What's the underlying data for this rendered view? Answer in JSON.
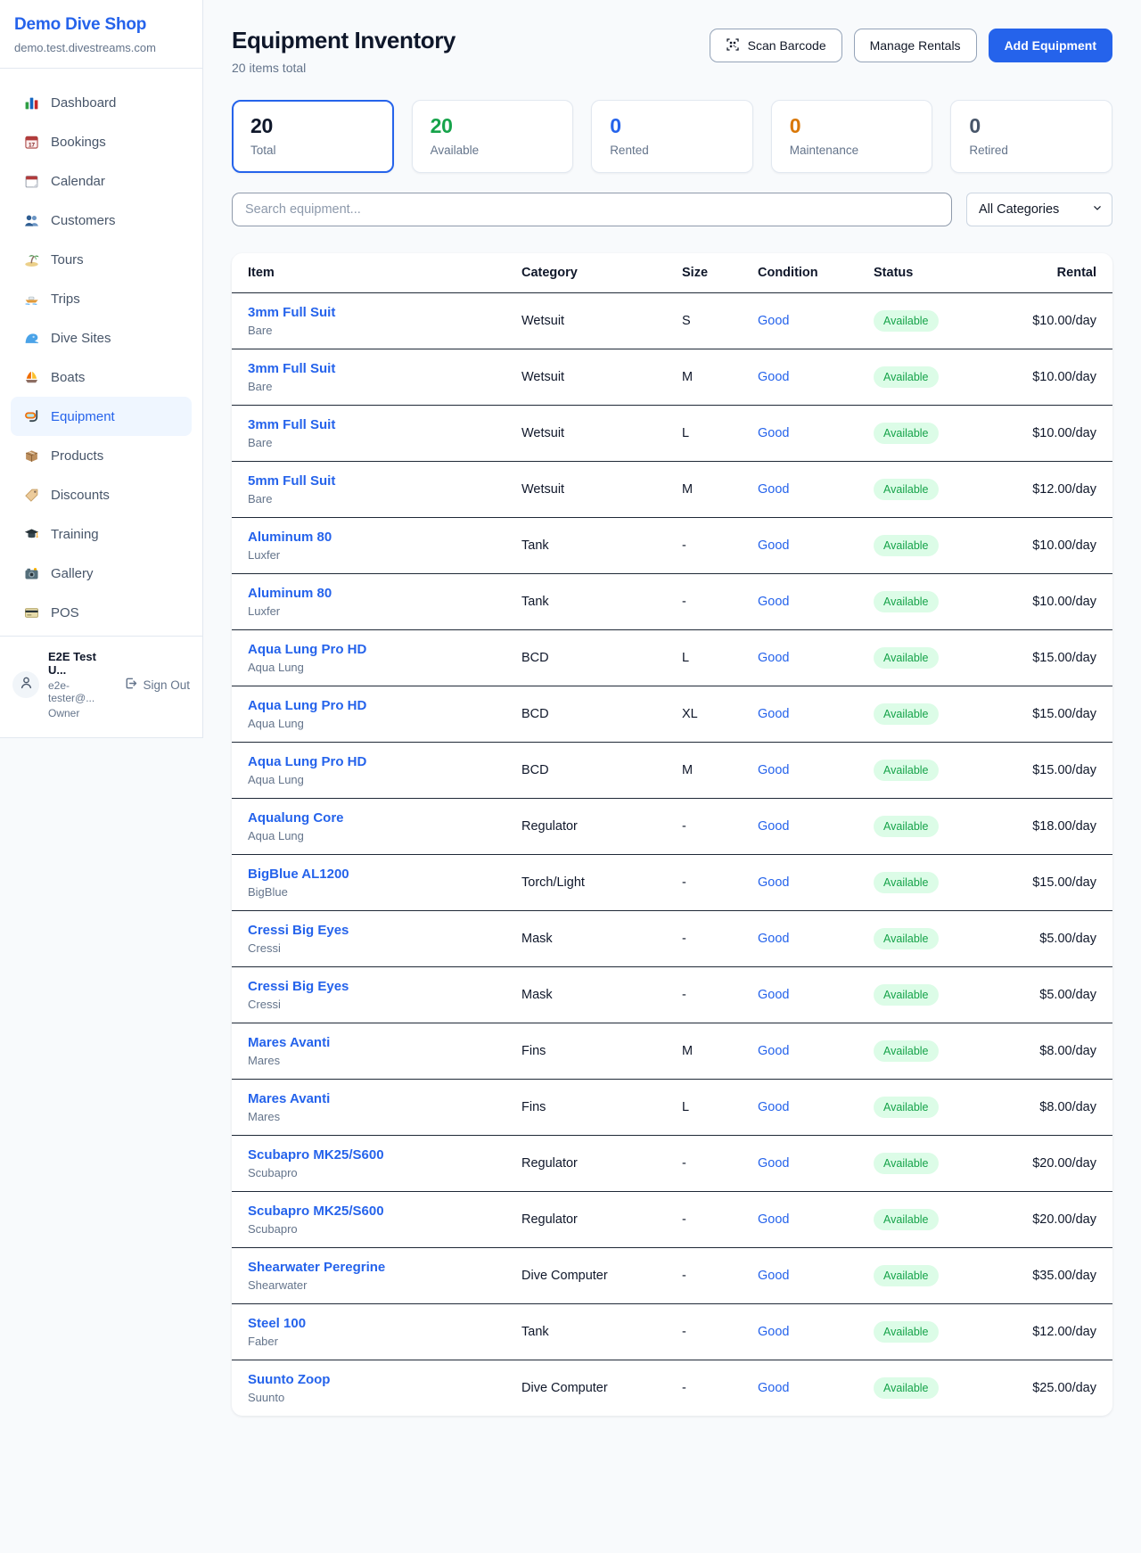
{
  "sidebar": {
    "shop_name": "Demo Dive Shop",
    "domain": "demo.test.divestreams.com",
    "nav": [
      {
        "label": "Dashboard",
        "icon": "dashboard-icon",
        "active": false
      },
      {
        "label": "Bookings",
        "icon": "bookings-icon",
        "active": false
      },
      {
        "label": "Calendar",
        "icon": "calendar-icon",
        "active": false
      },
      {
        "label": "Customers",
        "icon": "customers-icon",
        "active": false
      },
      {
        "label": "Tours",
        "icon": "tours-icon",
        "active": false
      },
      {
        "label": "Trips",
        "icon": "trips-icon",
        "active": false
      },
      {
        "label": "Dive Sites",
        "icon": "dive-sites-icon",
        "active": false
      },
      {
        "label": "Boats",
        "icon": "boats-icon",
        "active": false
      },
      {
        "label": "Equipment",
        "icon": "equipment-icon",
        "active": true
      },
      {
        "label": "Products",
        "icon": "products-icon",
        "active": false
      },
      {
        "label": "Discounts",
        "icon": "discounts-icon",
        "active": false
      },
      {
        "label": "Training",
        "icon": "training-icon",
        "active": false
      },
      {
        "label": "Gallery",
        "icon": "gallery-icon",
        "active": false
      },
      {
        "label": "POS",
        "icon": "pos-icon",
        "active": false
      }
    ],
    "user": {
      "name": "E2E Test U...",
      "email": "e2e-tester@...",
      "role": "Owner",
      "sign_out_label": "Sign Out"
    }
  },
  "header": {
    "title": "Equipment Inventory",
    "subtitle": "20 items total",
    "buttons": {
      "scan": "Scan Barcode",
      "manage": "Manage Rentals",
      "add": "Add Equipment"
    }
  },
  "stats": [
    {
      "value": "20",
      "label": "Total",
      "color": "#0f172a",
      "selected": true
    },
    {
      "value": "20",
      "label": "Available",
      "color": "#16a34a",
      "selected": false
    },
    {
      "value": "0",
      "label": "Rented",
      "color": "#2563eb",
      "selected": false
    },
    {
      "value": "0",
      "label": "Maintenance",
      "color": "#d97706",
      "selected": false
    },
    {
      "value": "0",
      "label": "Retired",
      "color": "#475569",
      "selected": false
    }
  ],
  "filters": {
    "search_placeholder": "Search equipment...",
    "category_selected": "All Categories"
  },
  "table": {
    "columns": [
      "Item",
      "Category",
      "Size",
      "Condition",
      "Status",
      "Rental"
    ],
    "rows": [
      {
        "item": "3mm Full Suit",
        "brand": "Bare",
        "category": "Wetsuit",
        "size": "S",
        "condition": "Good",
        "status": "Available",
        "rental": "$10.00/day"
      },
      {
        "item": "3mm Full Suit",
        "brand": "Bare",
        "category": "Wetsuit",
        "size": "M",
        "condition": "Good",
        "status": "Available",
        "rental": "$10.00/day"
      },
      {
        "item": "3mm Full Suit",
        "brand": "Bare",
        "category": "Wetsuit",
        "size": "L",
        "condition": "Good",
        "status": "Available",
        "rental": "$10.00/day"
      },
      {
        "item": "5mm Full Suit",
        "brand": "Bare",
        "category": "Wetsuit",
        "size": "M",
        "condition": "Good",
        "status": "Available",
        "rental": "$12.00/day"
      },
      {
        "item": "Aluminum 80",
        "brand": "Luxfer",
        "category": "Tank",
        "size": "-",
        "condition": "Good",
        "status": "Available",
        "rental": "$10.00/day"
      },
      {
        "item": "Aluminum 80",
        "brand": "Luxfer",
        "category": "Tank",
        "size": "-",
        "condition": "Good",
        "status": "Available",
        "rental": "$10.00/day"
      },
      {
        "item": "Aqua Lung Pro HD",
        "brand": "Aqua Lung",
        "category": "BCD",
        "size": "L",
        "condition": "Good",
        "status": "Available",
        "rental": "$15.00/day"
      },
      {
        "item": "Aqua Lung Pro HD",
        "brand": "Aqua Lung",
        "category": "BCD",
        "size": "XL",
        "condition": "Good",
        "status": "Available",
        "rental": "$15.00/day"
      },
      {
        "item": "Aqua Lung Pro HD",
        "brand": "Aqua Lung",
        "category": "BCD",
        "size": "M",
        "condition": "Good",
        "status": "Available",
        "rental": "$15.00/day"
      },
      {
        "item": "Aqualung Core",
        "brand": "Aqua Lung",
        "category": "Regulator",
        "size": "-",
        "condition": "Good",
        "status": "Available",
        "rental": "$18.00/day"
      },
      {
        "item": "BigBlue AL1200",
        "brand": "BigBlue",
        "category": "Torch/Light",
        "size": "-",
        "condition": "Good",
        "status": "Available",
        "rental": "$15.00/day"
      },
      {
        "item": "Cressi Big Eyes",
        "brand": "Cressi",
        "category": "Mask",
        "size": "-",
        "condition": "Good",
        "status": "Available",
        "rental": "$5.00/day"
      },
      {
        "item": "Cressi Big Eyes",
        "brand": "Cressi",
        "category": "Mask",
        "size": "-",
        "condition": "Good",
        "status": "Available",
        "rental": "$5.00/day"
      },
      {
        "item": "Mares Avanti",
        "brand": "Mares",
        "category": "Fins",
        "size": "M",
        "condition": "Good",
        "status": "Available",
        "rental": "$8.00/day"
      },
      {
        "item": "Mares Avanti",
        "brand": "Mares",
        "category": "Fins",
        "size": "L",
        "condition": "Good",
        "status": "Available",
        "rental": "$8.00/day"
      },
      {
        "item": "Scubapro MK25/S600",
        "brand": "Scubapro",
        "category": "Regulator",
        "size": "-",
        "condition": "Good",
        "status": "Available",
        "rental": "$20.00/day"
      },
      {
        "item": "Scubapro MK25/S600",
        "brand": "Scubapro",
        "category": "Regulator",
        "size": "-",
        "condition": "Good",
        "status": "Available",
        "rental": "$20.00/day"
      },
      {
        "item": "Shearwater Peregrine",
        "brand": "Shearwater",
        "category": "Dive Computer",
        "size": "-",
        "condition": "Good",
        "status": "Available",
        "rental": "$35.00/day"
      },
      {
        "item": "Steel 100",
        "brand": "Faber",
        "category": "Tank",
        "size": "-",
        "condition": "Good",
        "status": "Available",
        "rental": "$12.00/day"
      },
      {
        "item": "Suunto Zoop",
        "brand": "Suunto",
        "category": "Dive Computer",
        "size": "-",
        "condition": "Good",
        "status": "Available",
        "rental": "$25.00/day"
      }
    ]
  },
  "colors": {
    "accent_blue": "#2563eb",
    "available_green": "#16a34a",
    "badge_bg": "#dcfce7",
    "maintenance_orange": "#d97706",
    "background": "#f8fafc"
  }
}
